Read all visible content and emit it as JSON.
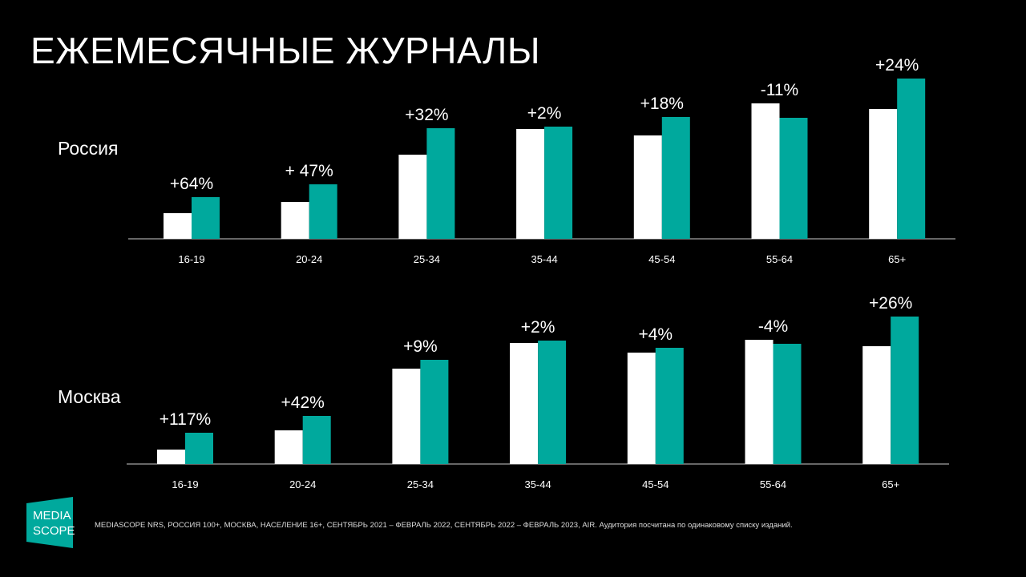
{
  "title": "ЕЖЕМЕСЯЧНЫЕ ЖУРНАЛЫ",
  "footer": "MEDIASCOPE NRS, РОССИЯ 100+, МОСКВА, НАСЕЛЕНИЕ 16+, СЕНТЯБРЬ 2021 – ФЕВРАЛЬ 2022, СЕНТЯБРЬ 2022 – ФЕВРАЛЬ 2023, AIR. Аудитория посчитана по одинаковому списку изданий.",
  "logo": "MEDIA SCOPE",
  "colors": {
    "prev": "#ffffff",
    "curr": "#00a99d"
  },
  "chart_data": [
    {
      "type": "bar",
      "title": "Россия",
      "categories": [
        "16-19",
        "20-24",
        "25-34",
        "35-44",
        "45-54",
        "55-64",
        "65+"
      ],
      "series": [
        {
          "name": "Сентябрь 2021 – Февраль 2022",
          "values": [
            32,
            46,
            105,
            137,
            129,
            169,
            162
          ]
        },
        {
          "name": "Сентябрь 2022 – Февраль 2023",
          "values": [
            52,
            68,
            138,
            140,
            152,
            151,
            200
          ]
        }
      ],
      "labels": [
        "+64%",
        "+ 47%",
        "+32%",
        "+2%",
        "+18%",
        "-11%",
        "+24%"
      ],
      "ylim": [
        0,
        200
      ]
    },
    {
      "type": "bar",
      "title": "Москва",
      "categories": [
        "16-19",
        "20-24",
        "25-34",
        "35-44",
        "45-54",
        "55-64",
        "65+"
      ],
      "series": [
        {
          "name": "Сентябрь 2021 – Февраль 2022",
          "values": [
            18,
            42,
            119,
            151,
            139,
            155,
            147
          ]
        },
        {
          "name": "Сентябрь 2022 – Февраль 2023",
          "values": [
            39,
            60,
            130,
            154,
            145,
            150,
            184
          ]
        }
      ],
      "labels": [
        "+117%",
        "+42%",
        "+9%",
        "+2%",
        "+4%",
        "-4%",
        "+26%"
      ],
      "ylim": [
        0,
        200
      ]
    }
  ]
}
